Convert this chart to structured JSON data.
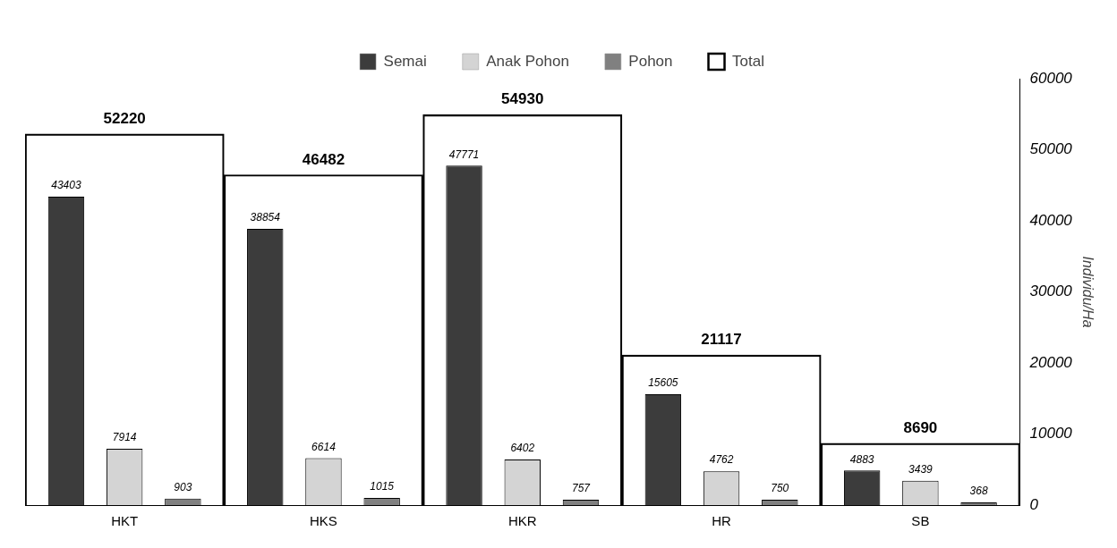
{
  "chart_data": {
    "type": "bar",
    "categories": [
      "HKT",
      "HKS",
      "HKR",
      "HR",
      "SB"
    ],
    "ylabel": "Individu/Ha",
    "ylim": [
      0,
      60000
    ],
    "yticks": [
      0,
      10000,
      20000,
      30000,
      40000,
      50000,
      60000
    ],
    "grid": false,
    "legend": "top",
    "data_labels": true,
    "series": [
      {
        "name": "Semai",
        "color": "#3c3c3c",
        "values": [
          43403,
          38854,
          47771,
          15605,
          4883
        ]
      },
      {
        "name": "Anak Pohon",
        "color": "#d4d4d4",
        "values": [
          7914,
          6614,
          6402,
          4762,
          3439
        ]
      },
      {
        "name": "Pohon",
        "color": "#808080",
        "values": [
          903,
          1015,
          757,
          750,
          368
        ]
      },
      {
        "name": "Total",
        "color": "#000000",
        "values": [
          52220,
          46482,
          54930,
          21117,
          8690
        ],
        "type": "bar"
      }
    ]
  }
}
